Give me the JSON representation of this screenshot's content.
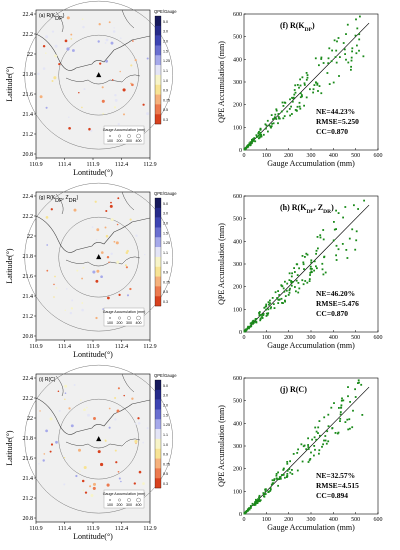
{
  "figure": {
    "map_ylabel": "Latitude(°)",
    "map_xlabel": "Lontitude(°)",
    "colorbar_title": "QPE/Gauge",
    "colorbar_ticks": [
      "5.0",
      "3.0",
      "2.0",
      "1.5",
      "1.25",
      "1.1",
      "1.0",
      "0.9",
      "0.75",
      "0.5",
      "0.3"
    ],
    "colorbar_colors": [
      "#171a5c",
      "#262b8a",
      "#3d44b3",
      "#6a6fd0",
      "#a6a9ea",
      "#e4e5f6",
      "#f7f4c8",
      "#f7e394",
      "#f5b17c",
      "#ec7a4f",
      "#d8421f"
    ],
    "map_xticks": [
      "110.9",
      "111.4",
      "111.9",
      "112.4",
      "112.9"
    ],
    "map_yticks": [
      "22.4",
      "22.2",
      "22",
      "21.8",
      "21.6",
      "21.4",
      "21.2",
      "20.8"
    ],
    "legend_label": "Gauge Accumulation (mm)",
    "legend_values": [
      "100",
      "200",
      "300",
      "400"
    ],
    "colors": {
      "scatter_point": "#1a8a1a",
      "fit_line": "#000000",
      "map_bg": "#f0f0f0",
      "coast": "#444444"
    }
  },
  "chart_data": [
    {
      "panel": "a",
      "type": "map",
      "label": "(a) R(K",
      "label_sub": "DP",
      "label_end": ")"
    },
    {
      "panel": "f",
      "type": "scatter",
      "title": "(f)  R(K",
      "title_sub": "DP",
      "title_end": ")",
      "xlabel": "Gauge Accumulation (mm)",
      "ylabel": "QPE Accumulation (mm)",
      "xlim": [
        0,
        600
      ],
      "ylim": [
        0,
        600
      ],
      "xticks": [
        "0",
        "100",
        "200",
        "300",
        "400",
        "500",
        "600"
      ],
      "yticks": [
        "0",
        "100",
        "200",
        "300",
        "400",
        "500",
        "600"
      ],
      "stats": [
        "NE=44.23%",
        "RMSE=5.250",
        "CC=0.870"
      ],
      "seed": 11,
      "spread": 0.28
    },
    {
      "panel": "b",
      "type": "map",
      "label": "(g) R(K",
      "label_sub": "DP",
      "label_mid": ", Z",
      "label_sub2": "DR",
      "label_end": ")"
    },
    {
      "panel": "h",
      "type": "scatter",
      "title": "(h)  R(K",
      "title_sub": "DP",
      "title_mid": ", Z",
      "title_sub2": "DR",
      "title_end": ")",
      "xlabel": "Gauge Accumulation (mm)",
      "ylabel": "QPE Accumulation (mm)",
      "xlim": [
        0,
        600
      ],
      "ylim": [
        0,
        600
      ],
      "xticks": [
        "0",
        "100",
        "200",
        "300",
        "400",
        "500",
        "600"
      ],
      "yticks": [
        "0",
        "100",
        "200",
        "300",
        "400",
        "500",
        "600"
      ],
      "stats": [
        "NE=46.20%",
        "RMSE=5.476",
        "CC=0.870"
      ],
      "seed": 23,
      "spread": 0.3
    },
    {
      "panel": "c",
      "type": "map",
      "label": "(i) R(C)"
    },
    {
      "panel": "j",
      "type": "scatter",
      "title": "(j)  R(C)",
      "xlabel": "Gauge Accumulation (mm)",
      "ylabel": "QPE Accumulation (mm)",
      "xlim": [
        0,
        600
      ],
      "ylim": [
        0,
        600
      ],
      "xticks": [
        "0",
        "100",
        "200",
        "300",
        "400",
        "500",
        "600"
      ],
      "yticks": [
        "0",
        "100",
        "200",
        "300",
        "400",
        "500",
        "600"
      ],
      "stats": [
        "NE=32.57%",
        "RMSE=4.515",
        "CC=0.894"
      ],
      "seed": 37,
      "spread": 0.22
    }
  ]
}
